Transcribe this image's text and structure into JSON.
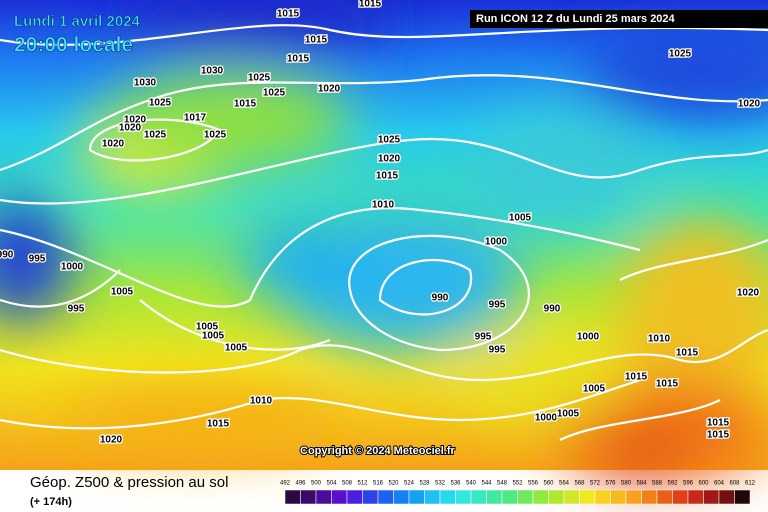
{
  "header": {
    "date": "Lundi 1 avril 2024",
    "time": "20:00 locale",
    "run": "Run ICON 12 Z du Lundi 25 mars 2024"
  },
  "copyright": "Copyright © 2024 Meteociel.fr",
  "footer": {
    "title": "Géop. Z500 & pression au sol",
    "lead": "(+ 174h)"
  },
  "scale": {
    "ticks": [
      492,
      496,
      500,
      504,
      508,
      512,
      516,
      520,
      524,
      528,
      532,
      536,
      540,
      544,
      548,
      552,
      556,
      560,
      564,
      568,
      572,
      576,
      580,
      584,
      588,
      592,
      596,
      600,
      604,
      608,
      612
    ]
  },
  "isobar_labels": [
    "1015",
    "1015",
    "1015",
    "1015",
    "1030",
    "1025",
    "1030",
    "1020",
    "1025",
    "1025",
    "1015",
    "1020",
    "1017",
    "1020",
    "1025",
    "1025",
    "1020",
    "1025",
    "1020",
    "1015",
    "1010",
    "1005",
    "1000",
    "995",
    "1000",
    "1005",
    "995",
    "990",
    "995",
    "990",
    "1005",
    "1005",
    "1005",
    "995",
    "995",
    "1000",
    "1010",
    "1015",
    "1015",
    "1015",
    "1005",
    "1010",
    "1015",
    "1020",
    "1000",
    "1005",
    "1015",
    "1015",
    "1025",
    "1020",
    "1020",
    "990"
  ]
}
